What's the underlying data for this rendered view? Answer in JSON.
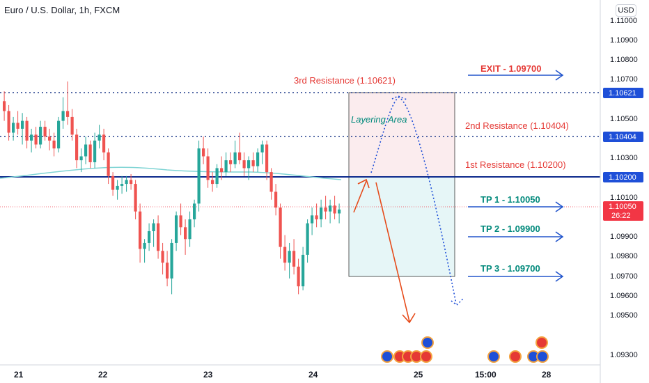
{
  "header": {
    "title": "Euro / U.S. Dollar, 1h, FXCM",
    "currency_button": "USD"
  },
  "colors": {
    "bull": "#26a69a",
    "bear": "#ef5350",
    "resistance": "#1e3a8a",
    "key_line": "#0d2a8c",
    "tp_arrow": "#2255cc",
    "ma": "#7fd4d4",
    "price_tag": "#f23645",
    "level_tag": "#1e4fd8",
    "sell_zone": "#fbecee",
    "buy_zone": "#e6f6f7"
  },
  "chart_data": {
    "type": "candlestick",
    "symbol": "Euro / U.S. Dollar",
    "timeframe": "1h",
    "source": "FXCM",
    "y_axis": {
      "ticks": [
        "1.10900",
        "1.10800",
        "1.10700",
        "1.10500",
        "1.10300",
        "1.10100",
        "1.09900",
        "1.09800",
        "1.09700",
        "1.09600",
        "1.09500",
        "1.09300"
      ]
    },
    "x_axis": {
      "ticks": [
        "21",
        "22",
        "23",
        "24",
        "25",
        "15:00",
        "28"
      ]
    },
    "current_price": {
      "price": "1.10050",
      "countdown": "26:22"
    },
    "levels": [
      {
        "price": 1.10621,
        "label": "3rd Resistance (1.10621)",
        "tag": "1.10621",
        "style": "dotted"
      },
      {
        "price": 1.10404,
        "label": "2nd Resistance (1.10404)",
        "tag": "1.10404",
        "style": "dotted"
      },
      {
        "price": 1.102,
        "label": "1st Resistance (1.10200)",
        "tag": "1.10200",
        "style": "solid"
      }
    ],
    "targets": [
      {
        "label": "EXIT - 1.09700",
        "kind": "exit"
      },
      {
        "label": "TP 1 - 1.10050",
        "kind": "tp"
      },
      {
        "label": "TP 2 - 1.09900",
        "kind": "tp"
      },
      {
        "label": "TP 3 - 1.09700",
        "kind": "tp"
      }
    ],
    "zone_label": "Layering Area",
    "candles": [
      {
        "o": 1.106,
        "h": 1.1065,
        "l": 1.105,
        "c": 1.1055
      },
      {
        "o": 1.1055,
        "h": 1.1058,
        "l": 1.104,
        "c": 1.1044
      },
      {
        "o": 1.1044,
        "h": 1.1052,
        "l": 1.104,
        "c": 1.1049
      },
      {
        "o": 1.1049,
        "h": 1.1055,
        "l": 1.1043,
        "c": 1.1046
      },
      {
        "o": 1.1046,
        "h": 1.1054,
        "l": 1.1038,
        "c": 1.105
      },
      {
        "o": 1.105,
        "h": 1.1052,
        "l": 1.1036,
        "c": 1.104
      },
      {
        "o": 1.104,
        "h": 1.1046,
        "l": 1.1034,
        "c": 1.1043
      },
      {
        "o": 1.1043,
        "h": 1.1047,
        "l": 1.1036,
        "c": 1.1038
      },
      {
        "o": 1.1038,
        "h": 1.105,
        "l": 1.1036,
        "c": 1.1047
      },
      {
        "o": 1.1047,
        "h": 1.105,
        "l": 1.104,
        "c": 1.1042
      },
      {
        "o": 1.1042,
        "h": 1.1046,
        "l": 1.1035,
        "c": 1.104
      },
      {
        "o": 1.104,
        "h": 1.1044,
        "l": 1.1032,
        "c": 1.1036
      },
      {
        "o": 1.1036,
        "h": 1.1052,
        "l": 1.1034,
        "c": 1.105
      },
      {
        "o": 1.105,
        "h": 1.1062,
        "l": 1.1046,
        "c": 1.1055
      },
      {
        "o": 1.1055,
        "h": 1.107,
        "l": 1.1048,
        "c": 1.1052
      },
      {
        "o": 1.1052,
        "h": 1.1056,
        "l": 1.104,
        "c": 1.1043
      },
      {
        "o": 1.1043,
        "h": 1.1046,
        "l": 1.1026,
        "c": 1.103
      },
      {
        "o": 1.103,
        "h": 1.1036,
        "l": 1.1024,
        "c": 1.1032
      },
      {
        "o": 1.1032,
        "h": 1.1042,
        "l": 1.1028,
        "c": 1.1038
      },
      {
        "o": 1.1038,
        "h": 1.104,
        "l": 1.1026,
        "c": 1.1029
      },
      {
        "o": 1.1029,
        "h": 1.1044,
        "l": 1.1026,
        "c": 1.104
      },
      {
        "o": 1.104,
        "h": 1.1048,
        "l": 1.1036,
        "c": 1.1043
      },
      {
        "o": 1.1043,
        "h": 1.1046,
        "l": 1.103,
        "c": 1.1034
      },
      {
        "o": 1.1034,
        "h": 1.1036,
        "l": 1.1018,
        "c": 1.1022
      },
      {
        "o": 1.1022,
        "h": 1.1024,
        "l": 1.1012,
        "c": 1.1015
      },
      {
        "o": 1.1015,
        "h": 1.102,
        "l": 1.101,
        "c": 1.1017
      },
      {
        "o": 1.1017,
        "h": 1.1022,
        "l": 1.1013,
        "c": 1.1018
      },
      {
        "o": 1.1018,
        "h": 1.1022,
        "l": 1.1014,
        "c": 1.102
      },
      {
        "o": 1.102,
        "h": 1.1023,
        "l": 1.1015,
        "c": 1.1018
      },
      {
        "o": 1.1018,
        "h": 1.102,
        "l": 1.1,
        "c": 1.1004
      },
      {
        "o": 1.1004,
        "h": 1.1008,
        "l": 1.0978,
        "c": 1.0985
      },
      {
        "o": 1.0985,
        "h": 1.099,
        "l": 1.0978,
        "c": 1.0988
      },
      {
        "o": 1.0988,
        "h": 1.0998,
        "l": 1.0984,
        "c": 1.0994
      },
      {
        "o": 1.0994,
        "h": 1.1,
        "l": 1.0986,
        "c": 1.0998
      },
      {
        "o": 1.0998,
        "h": 1.1002,
        "l": 1.098,
        "c": 1.0984
      },
      {
        "o": 1.0984,
        "h": 1.0988,
        "l": 1.0972,
        "c": 1.0978
      },
      {
        "o": 1.0978,
        "h": 1.0984,
        "l": 1.0966,
        "c": 1.097
      },
      {
        "o": 1.097,
        "h": 1.099,
        "l": 1.0962,
        "c": 1.0988
      },
      {
        "o": 1.0988,
        "h": 1.1004,
        "l": 1.0984,
        "c": 1.1002
      },
      {
        "o": 1.1002,
        "h": 1.1008,
        "l": 1.0992,
        "c": 1.0996
      },
      {
        "o": 1.0996,
        "h": 1.1,
        "l": 1.0982,
        "c": 1.099
      },
      {
        "o": 1.099,
        "h": 1.1004,
        "l": 1.0986,
        "c": 1.1
      },
      {
        "o": 1.1,
        "h": 1.101,
        "l": 1.0996,
        "c": 1.1008
      },
      {
        "o": 1.1008,
        "h": 1.104,
        "l": 1.1004,
        "c": 1.1036
      },
      {
        "o": 1.1036,
        "h": 1.1042,
        "l": 1.1028,
        "c": 1.1032
      },
      {
        "o": 1.1032,
        "h": 1.1036,
        "l": 1.1016,
        "c": 1.102
      },
      {
        "o": 1.102,
        "h": 1.1024,
        "l": 1.1014,
        "c": 1.1018
      },
      {
        "o": 1.1018,
        "h": 1.1028,
        "l": 1.1016,
        "c": 1.1026
      },
      {
        "o": 1.1026,
        "h": 1.1032,
        "l": 1.102,
        "c": 1.1024
      },
      {
        "o": 1.1024,
        "h": 1.1034,
        "l": 1.1022,
        "c": 1.103
      },
      {
        "o": 1.103,
        "h": 1.1034,
        "l": 1.1024,
        "c": 1.1028
      },
      {
        "o": 1.1028,
        "h": 1.104,
        "l": 1.1026,
        "c": 1.1034
      },
      {
        "o": 1.1034,
        "h": 1.1044,
        "l": 1.1028,
        "c": 1.103
      },
      {
        "o": 1.103,
        "h": 1.1034,
        "l": 1.1022,
        "c": 1.1026
      },
      {
        "o": 1.1026,
        "h": 1.1032,
        "l": 1.102,
        "c": 1.103
      },
      {
        "o": 1.103,
        "h": 1.1034,
        "l": 1.1024,
        "c": 1.1027
      },
      {
        "o": 1.1027,
        "h": 1.1036,
        "l": 1.1024,
        "c": 1.1034
      },
      {
        "o": 1.1034,
        "h": 1.104,
        "l": 1.1028,
        "c": 1.1038
      },
      {
        "o": 1.1038,
        "h": 1.104,
        "l": 1.102,
        "c": 1.1024
      },
      {
        "o": 1.1024,
        "h": 1.1026,
        "l": 1.101,
        "c": 1.1014
      },
      {
        "o": 1.1014,
        "h": 1.1018,
        "l": 1.1002,
        "c": 1.1006
      },
      {
        "o": 1.1006,
        "h": 1.1008,
        "l": 1.098,
        "c": 1.0986
      },
      {
        "o": 1.0986,
        "h": 1.0992,
        "l": 1.0974,
        "c": 1.0978
      },
      {
        "o": 1.0978,
        "h": 1.0988,
        "l": 1.097,
        "c": 1.0984
      },
      {
        "o": 1.0984,
        "h": 1.099,
        "l": 1.0972,
        "c": 1.0976
      },
      {
        "o": 1.0976,
        "h": 1.098,
        "l": 1.0962,
        "c": 1.0966
      },
      {
        "o": 1.0966,
        "h": 1.0986,
        "l": 1.0964,
        "c": 1.0982
      },
      {
        "o": 1.0982,
        "h": 1.1,
        "l": 1.0978,
        "c": 1.0998
      },
      {
        "o": 1.0998,
        "h": 1.1006,
        "l": 1.0992,
        "c": 1.1002
      },
      {
        "o": 1.1002,
        "h": 1.1008,
        "l": 1.0996,
        "c": 1.1
      },
      {
        "o": 1.1,
        "h": 1.101,
        "l": 1.0996,
        "c": 1.1006
      },
      {
        "o": 1.1006,
        "h": 1.1012,
        "l": 1.1,
        "c": 1.1004
      },
      {
        "o": 1.1004,
        "h": 1.101,
        "l": 1.0998,
        "c": 1.1007
      },
      {
        "o": 1.1007,
        "h": 1.1012,
        "l": 1.1,
        "c": 1.1003
      },
      {
        "o": 1.1003,
        "h": 1.1008,
        "l": 1.0998,
        "c": 1.1005
      }
    ]
  }
}
